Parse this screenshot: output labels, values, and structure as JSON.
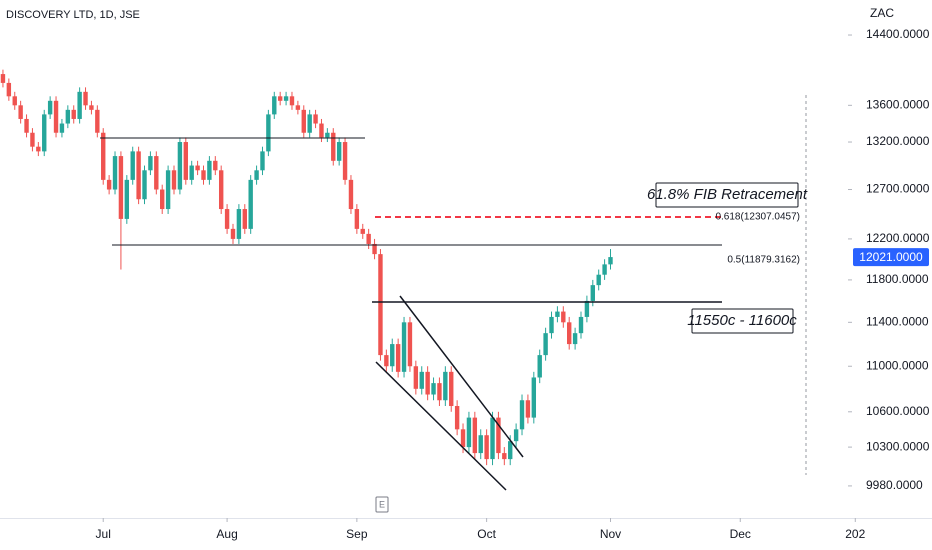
{
  "chart_data": {
    "type": "candlestick",
    "title": "DISCOVERY LTD, 1D, JSE",
    "currency": "ZAC",
    "log_scale": true,
    "up_color": "#26a69a",
    "down_color": "#ef5350",
    "ylim": [
      9723,
      14816
    ],
    "yticks": [
      {
        "value": 14400,
        "label": "14400.0000"
      },
      {
        "value": 13600,
        "label": "13600.0000"
      },
      {
        "value": 13200,
        "label": "13200.0000"
      },
      {
        "value": 12700,
        "label": "12700.0000"
      },
      {
        "value": 12200,
        "label": "12200.0000"
      },
      {
        "value": 11800,
        "label": "11800.0000"
      },
      {
        "value": 11400,
        "label": "11400.0000"
      },
      {
        "value": 11000,
        "label": "11000.0000"
      },
      {
        "value": 10600,
        "label": "10600.0000"
      },
      {
        "value": 10300,
        "label": "10300.0000"
      },
      {
        "value": 9980,
        "label": "9980.0000"
      }
    ],
    "xlim": [
      -0.5,
      145.3
    ],
    "xticks": [
      {
        "value": 17,
        "label": "Jul"
      },
      {
        "value": 38,
        "label": "Aug"
      },
      {
        "value": 60,
        "label": "Sep"
      },
      {
        "value": 82,
        "label": "Oct"
      },
      {
        "value": 103,
        "label": "Nov"
      },
      {
        "value": 125,
        "label": "Dec"
      },
      {
        "value": 144.5,
        "label": "202"
      }
    ],
    "last_price": {
      "value": 12021,
      "label": "12021.0000"
    },
    "annotations": [
      "61.8% FIB Retracement",
      "0.618(12307.0457)",
      "0.5(11879.3162)",
      "11550c - 11600c",
      "E"
    ],
    "open": [
      13950,
      13850,
      13700,
      13600,
      13450,
      13300,
      13150,
      13100,
      13500,
      13650,
      13300,
      13400,
      13550,
      13450,
      13750,
      13600,
      13550,
      13300,
      12800,
      12700,
      13050,
      12400,
      12800,
      13100,
      12600,
      12900,
      13050,
      12700,
      12500,
      12900,
      12700,
      13200,
      12800,
      12950,
      12900,
      12800,
      13000,
      12900,
      12500,
      12300,
      12200,
      12500,
      12300,
      12800,
      12900,
      13100,
      13500,
      13700,
      13650,
      13700,
      13600,
      13550,
      13300,
      13500,
      13400,
      13250,
      13300,
      13000,
      13200,
      12800,
      12500,
      12300,
      12250,
      12150,
      12050,
      11100,
      11000,
      11200,
      10950,
      11400,
      11000,
      10800,
      10950,
      10750,
      10850,
      10700,
      10950,
      10650,
      10450,
      10300,
      10550,
      10250,
      10400,
      10200,
      10550,
      10250,
      10200,
      10350,
      10450,
      10700,
      10550,
      10900,
      11100,
      11300,
      11450,
      11500,
      11400,
      11200,
      11300,
      11450,
      11600,
      11750,
      11850,
      11950
    ],
    "high": [
      14000,
      13900,
      13750,
      13650,
      13500,
      13350,
      13200,
      13550,
      13700,
      13700,
      13450,
      13600,
      13600,
      13800,
      13800,
      13650,
      13600,
      13350,
      12850,
      13100,
      13100,
      12850,
      13150,
      13150,
      12950,
      13100,
      13100,
      12750,
      12950,
      12950,
      13250,
      13250,
      13000,
      13000,
      12950,
      13050,
      13050,
      12950,
      12550,
      12350,
      12550,
      12550,
      12850,
      12950,
      13150,
      13550,
      13750,
      13750,
      13750,
      13750,
      13650,
      13600,
      13550,
      13550,
      13450,
      13350,
      13350,
      13250,
      13250,
      12850,
      12550,
      12350,
      12300,
      12200,
      12100,
      11150,
      11250,
      11250,
      11450,
      11450,
      11050,
      11000,
      11000,
      10900,
      10900,
      11000,
      11000,
      10700,
      10500,
      10600,
      10600,
      10450,
      10450,
      10600,
      10600,
      10300,
      10400,
      10500,
      10750,
      10750,
      10950,
      11150,
      11350,
      11500,
      11550,
      11550,
      11450,
      11350,
      11500,
      11650,
      11800,
      11900,
      12000,
      12100
    ],
    "low": [
      13800,
      13650,
      13550,
      13400,
      13250,
      13100,
      13050,
      13050,
      13450,
      13250,
      13250,
      13350,
      13400,
      13400,
      13550,
      13500,
      13250,
      12750,
      12650,
      12650,
      11900,
      12350,
      12750,
      12550,
      12550,
      12850,
      12650,
      12450,
      12450,
      12650,
      12650,
      12750,
      12750,
      12850,
      12750,
      12750,
      12850,
      12450,
      12250,
      12150,
      12150,
      12250,
      12250,
      12750,
      12850,
      13050,
      13450,
      13600,
      13600,
      13550,
      13500,
      13250,
      13250,
      13350,
      13200,
      13200,
      12950,
      12950,
      12750,
      12450,
      12250,
      12200,
      12100,
      12000,
      11050,
      10950,
      10950,
      10900,
      10900,
      10950,
      10750,
      10750,
      10700,
      10700,
      10650,
      10650,
      10600,
      10400,
      10250,
      10250,
      10200,
      10200,
      10150,
      10150,
      10200,
      10150,
      10150,
      10300,
      10400,
      10500,
      10500,
      10850,
      11050,
      11250,
      11400,
      11350,
      11150,
      11150,
      11250,
      11400,
      11550,
      11700,
      11800,
      11900
    ],
    "close": [
      13850,
      13700,
      13600,
      13450,
      13300,
      13150,
      13100,
      13500,
      13650,
      13300,
      13400,
      13550,
      13450,
      13750,
      13600,
      13550,
      13300,
      12800,
      12700,
      13050,
      12400,
      12800,
      13100,
      12600,
      12900,
      13050,
      12700,
      12500,
      12900,
      12700,
      13200,
      12800,
      12950,
      12900,
      12800,
      13000,
      12900,
      12500,
      12300,
      12200,
      12500,
      12300,
      12800,
      12900,
      13100,
      13500,
      13700,
      13650,
      13700,
      13600,
      13550,
      13300,
      13500,
      13400,
      13250,
      13300,
      13000,
      13200,
      12800,
      12500,
      12300,
      12250,
      12150,
      12050,
      11100,
      11000,
      11200,
      10950,
      11400,
      11000,
      10800,
      10950,
      10750,
      10850,
      10700,
      10950,
      10650,
      10450,
      10300,
      10550,
      10250,
      10400,
      10200,
      10550,
      10250,
      10200,
      10350,
      10450,
      10700,
      10550,
      10900,
      11100,
      11300,
      11450,
      11500,
      11400,
      11200,
      11300,
      11450,
      11600,
      11750,
      11850,
      11950,
      12021
    ]
  }
}
